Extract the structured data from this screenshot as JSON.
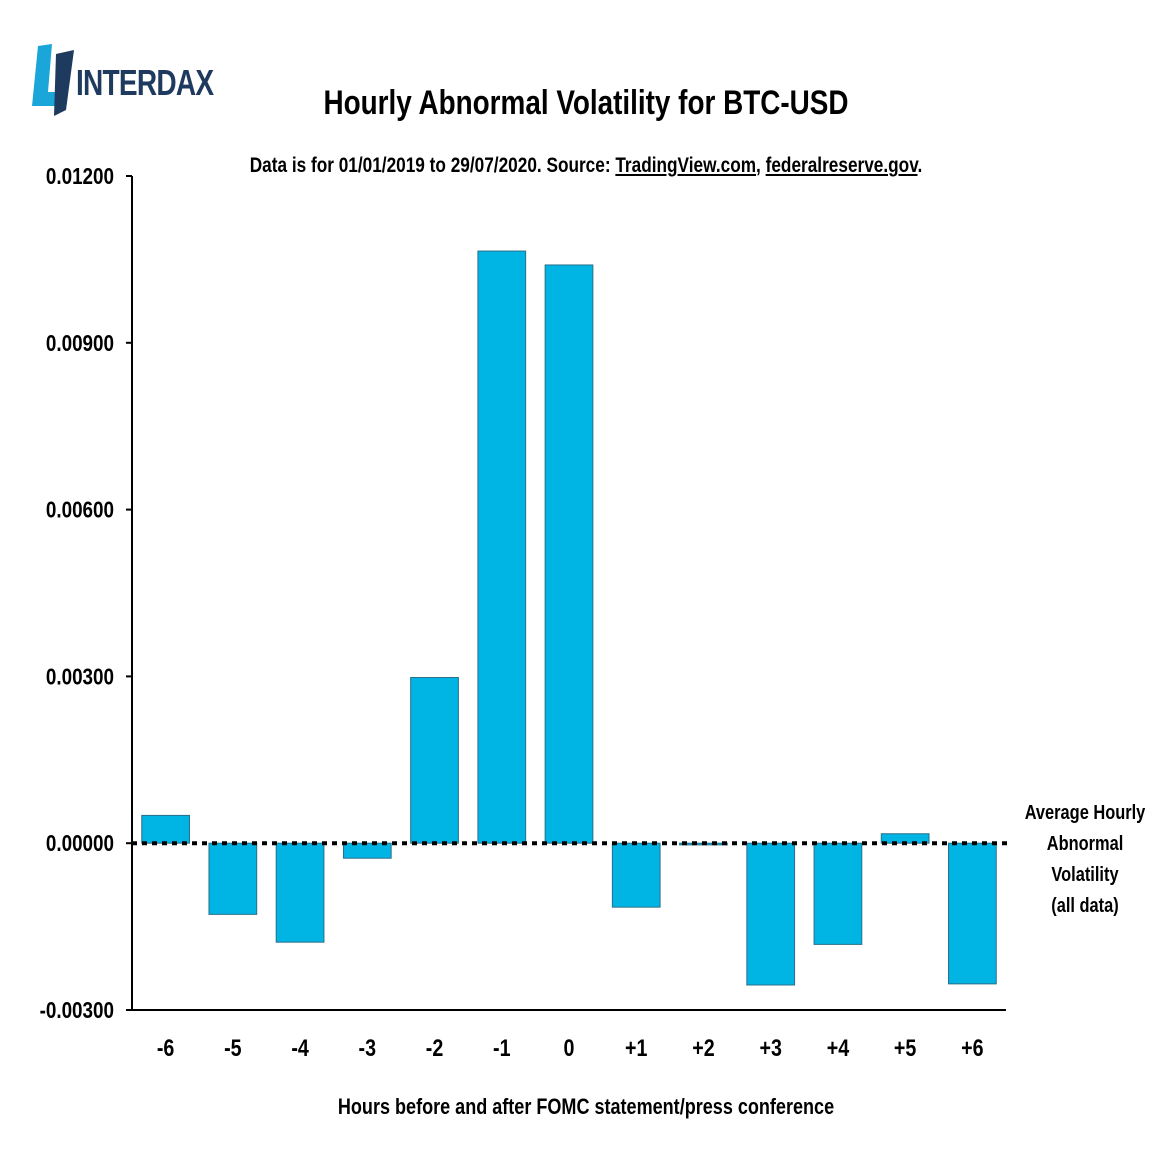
{
  "brand": {
    "name": "INTERDAX"
  },
  "chart_data": {
    "type": "bar",
    "title": "Hourly Abnormal Volatility for BTC-USD",
    "subtitle": {
      "prefix": "Data is for 01/01/2019 to 29/07/2020. Source: ",
      "link1": "TradingView.com",
      "sep": ", ",
      "link2": "federalreserve.gov",
      "suffix": "."
    },
    "xlabel": "Hours before and after FOMC statement/press conference",
    "ylabel": "",
    "categories": [
      "-6",
      "-5",
      "-4",
      "-3",
      "-2",
      "-1",
      "0",
      "+1",
      "+2",
      "+3",
      "+4",
      "+5",
      "+6"
    ],
    "values": [
      0.0005,
      -0.00128,
      -0.00178,
      -0.00027,
      0.00298,
      0.01065,
      0.0104,
      -0.00115,
      -3e-05,
      -0.00255,
      -0.00182,
      0.00017,
      -0.00253
    ],
    "ylim": [
      -0.003,
      0.012
    ],
    "yticks": [
      "-0.00300",
      "0.00000",
      "0.00300",
      "0.00600",
      "0.00900",
      "0.01200"
    ],
    "ytick_values": [
      -0.003,
      0,
      0.003,
      0.006,
      0.009,
      0.012
    ],
    "reference_line": {
      "value": 0,
      "style": "dotted",
      "label_lines": [
        "Average Hourly",
        "Abnormal Volatility",
        "(all data)"
      ]
    },
    "bar_color": "#00b4e4",
    "bar_stroke": "#2a6f8a",
    "grid": false,
    "legend": "none"
  }
}
